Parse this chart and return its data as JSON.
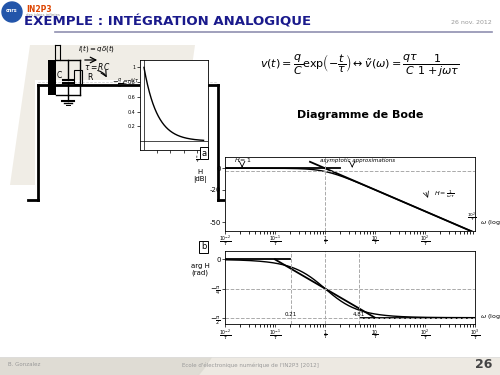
{
  "bg_color": "#ede9e2",
  "slide_bg": "#ffffff",
  "title_text": "EXEMPLE : INTÉGRATION ANALOGIQUE",
  "title_color": "#1a1a8c",
  "title_underline_color": "#9090b0",
  "date_text": "26 nov. 2012",
  "date_color": "#999999",
  "page_number": "26",
  "footer_left": "B. Gonzalez",
  "footer_center": "Ecole d'électronique numérique de l'IN2P3 [2012]",
  "bode_title": "Diagramme de Bode",
  "logo_color_cnrs": "#2255aa",
  "logo_color_in2p3": "#dd4400",
  "white_box_color": "#f5f3ee",
  "gray_circle_color": "#dddad2"
}
